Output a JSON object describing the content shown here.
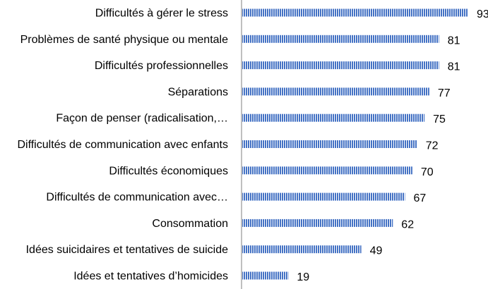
{
  "chart_data": {
    "type": "bar",
    "orientation": "horizontal",
    "categories": [
      "Difficultés à gérer le stress",
      "Problèmes de santé physique ou mentale",
      "Difficultés professionnelles",
      "Séparations",
      "Façon de penser (radicalisation,…",
      "Difficultés de communication avec enfants",
      "Difficultés économiques",
      "Difficultés de communication avec…",
      "Consommation",
      "Idées suicidaires et tentatives de suicide",
      "Idées et tentatives d’homicides"
    ],
    "values": [
      93,
      81,
      81,
      77,
      75,
      72,
      70,
      67,
      62,
      49,
      19
    ],
    "data_labels": [
      "93",
      "81",
      "81",
      "77",
      "75",
      "72",
      "70",
      "67",
      "62",
      "49",
      "19"
    ],
    "xlim": [
      0,
      93
    ],
    "grid": false,
    "legend": "none",
    "bar_color": "#4472c4",
    "bar_stripe_color": "#ffffff"
  }
}
